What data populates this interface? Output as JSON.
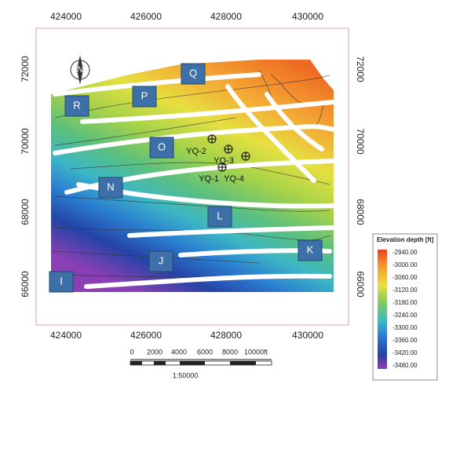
{
  "axes": {
    "top": [
      "424000",
      "426000",
      "428000",
      "430000"
    ],
    "bottom": [
      "424000",
      "426000",
      "428000",
      "430000"
    ],
    "left": [
      "72000",
      "70000",
      "68000",
      "66000"
    ],
    "right": [
      "72000",
      "70000",
      "68000",
      "66000"
    ]
  },
  "north": "N",
  "blocks": [
    "Q",
    "P",
    "R",
    "O",
    "N",
    "L",
    "K",
    "J",
    "I"
  ],
  "wells": [
    "YQ-2",
    "YQ-3",
    "YQ-1",
    "YQ-4"
  ],
  "legend": {
    "title": "Elevation depth [ft]",
    "labels": [
      "-2940.00",
      "-3000.00",
      "-3060.00",
      "-3120.00",
      "-3180.00",
      "-3240.00",
      "-3300.00",
      "-3360.00",
      "-3420.00",
      "-3480.00"
    ]
  },
  "scale_bar": {
    "labels": [
      "0",
      "2000",
      "4000",
      "6000",
      "8000",
      "10000ft"
    ],
    "ratio": "1:50000"
  }
}
